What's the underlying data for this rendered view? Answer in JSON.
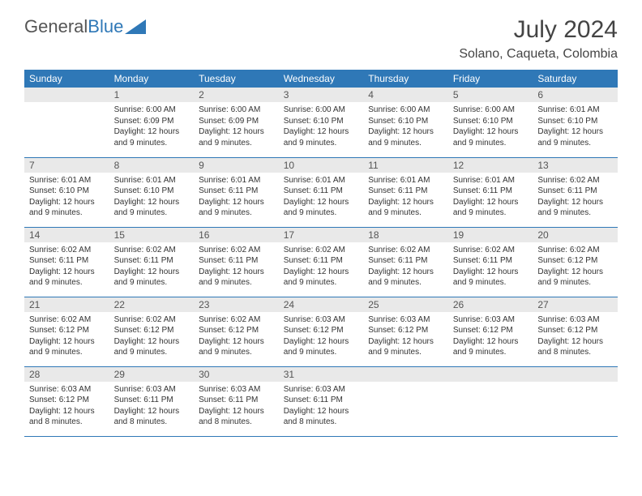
{
  "brand": {
    "part1": "General",
    "part2": "Blue"
  },
  "title": "July 2024",
  "location": "Solano, Caqueta, Colombia",
  "colors": {
    "header_bg": "#2f78b7",
    "header_text": "#ffffff",
    "daynum_bg": "#e9e9e9",
    "text": "#333333",
    "rule": "#2f78b7"
  },
  "fonts": {
    "title_pt": 30,
    "location_pt": 16,
    "day_header_pt": 12,
    "daynum_pt": 12,
    "body_pt": 10
  },
  "day_headers": [
    "Sunday",
    "Monday",
    "Tuesday",
    "Wednesday",
    "Thursday",
    "Friday",
    "Saturday"
  ],
  "weeks": [
    [
      {
        "n": "",
        "lines": []
      },
      {
        "n": "1",
        "lines": [
          "Sunrise: 6:00 AM",
          "Sunset: 6:09 PM",
          "Daylight: 12 hours",
          "and 9 minutes."
        ]
      },
      {
        "n": "2",
        "lines": [
          "Sunrise: 6:00 AM",
          "Sunset: 6:09 PM",
          "Daylight: 12 hours",
          "and 9 minutes."
        ]
      },
      {
        "n": "3",
        "lines": [
          "Sunrise: 6:00 AM",
          "Sunset: 6:10 PM",
          "Daylight: 12 hours",
          "and 9 minutes."
        ]
      },
      {
        "n": "4",
        "lines": [
          "Sunrise: 6:00 AM",
          "Sunset: 6:10 PM",
          "Daylight: 12 hours",
          "and 9 minutes."
        ]
      },
      {
        "n": "5",
        "lines": [
          "Sunrise: 6:00 AM",
          "Sunset: 6:10 PM",
          "Daylight: 12 hours",
          "and 9 minutes."
        ]
      },
      {
        "n": "6",
        "lines": [
          "Sunrise: 6:01 AM",
          "Sunset: 6:10 PM",
          "Daylight: 12 hours",
          "and 9 minutes."
        ]
      }
    ],
    [
      {
        "n": "7",
        "lines": [
          "Sunrise: 6:01 AM",
          "Sunset: 6:10 PM",
          "Daylight: 12 hours",
          "and 9 minutes."
        ]
      },
      {
        "n": "8",
        "lines": [
          "Sunrise: 6:01 AM",
          "Sunset: 6:10 PM",
          "Daylight: 12 hours",
          "and 9 minutes."
        ]
      },
      {
        "n": "9",
        "lines": [
          "Sunrise: 6:01 AM",
          "Sunset: 6:11 PM",
          "Daylight: 12 hours",
          "and 9 minutes."
        ]
      },
      {
        "n": "10",
        "lines": [
          "Sunrise: 6:01 AM",
          "Sunset: 6:11 PM",
          "Daylight: 12 hours",
          "and 9 minutes."
        ]
      },
      {
        "n": "11",
        "lines": [
          "Sunrise: 6:01 AM",
          "Sunset: 6:11 PM",
          "Daylight: 12 hours",
          "and 9 minutes."
        ]
      },
      {
        "n": "12",
        "lines": [
          "Sunrise: 6:01 AM",
          "Sunset: 6:11 PM",
          "Daylight: 12 hours",
          "and 9 minutes."
        ]
      },
      {
        "n": "13",
        "lines": [
          "Sunrise: 6:02 AM",
          "Sunset: 6:11 PM",
          "Daylight: 12 hours",
          "and 9 minutes."
        ]
      }
    ],
    [
      {
        "n": "14",
        "lines": [
          "Sunrise: 6:02 AM",
          "Sunset: 6:11 PM",
          "Daylight: 12 hours",
          "and 9 minutes."
        ]
      },
      {
        "n": "15",
        "lines": [
          "Sunrise: 6:02 AM",
          "Sunset: 6:11 PM",
          "Daylight: 12 hours",
          "and 9 minutes."
        ]
      },
      {
        "n": "16",
        "lines": [
          "Sunrise: 6:02 AM",
          "Sunset: 6:11 PM",
          "Daylight: 12 hours",
          "and 9 minutes."
        ]
      },
      {
        "n": "17",
        "lines": [
          "Sunrise: 6:02 AM",
          "Sunset: 6:11 PM",
          "Daylight: 12 hours",
          "and 9 minutes."
        ]
      },
      {
        "n": "18",
        "lines": [
          "Sunrise: 6:02 AM",
          "Sunset: 6:11 PM",
          "Daylight: 12 hours",
          "and 9 minutes."
        ]
      },
      {
        "n": "19",
        "lines": [
          "Sunrise: 6:02 AM",
          "Sunset: 6:11 PM",
          "Daylight: 12 hours",
          "and 9 minutes."
        ]
      },
      {
        "n": "20",
        "lines": [
          "Sunrise: 6:02 AM",
          "Sunset: 6:12 PM",
          "Daylight: 12 hours",
          "and 9 minutes."
        ]
      }
    ],
    [
      {
        "n": "21",
        "lines": [
          "Sunrise: 6:02 AM",
          "Sunset: 6:12 PM",
          "Daylight: 12 hours",
          "and 9 minutes."
        ]
      },
      {
        "n": "22",
        "lines": [
          "Sunrise: 6:02 AM",
          "Sunset: 6:12 PM",
          "Daylight: 12 hours",
          "and 9 minutes."
        ]
      },
      {
        "n": "23",
        "lines": [
          "Sunrise: 6:02 AM",
          "Sunset: 6:12 PM",
          "Daylight: 12 hours",
          "and 9 minutes."
        ]
      },
      {
        "n": "24",
        "lines": [
          "Sunrise: 6:03 AM",
          "Sunset: 6:12 PM",
          "Daylight: 12 hours",
          "and 9 minutes."
        ]
      },
      {
        "n": "25",
        "lines": [
          "Sunrise: 6:03 AM",
          "Sunset: 6:12 PM",
          "Daylight: 12 hours",
          "and 9 minutes."
        ]
      },
      {
        "n": "26",
        "lines": [
          "Sunrise: 6:03 AM",
          "Sunset: 6:12 PM",
          "Daylight: 12 hours",
          "and 9 minutes."
        ]
      },
      {
        "n": "27",
        "lines": [
          "Sunrise: 6:03 AM",
          "Sunset: 6:12 PM",
          "Daylight: 12 hours",
          "and 8 minutes."
        ]
      }
    ],
    [
      {
        "n": "28",
        "lines": [
          "Sunrise: 6:03 AM",
          "Sunset: 6:12 PM",
          "Daylight: 12 hours",
          "and 8 minutes."
        ]
      },
      {
        "n": "29",
        "lines": [
          "Sunrise: 6:03 AM",
          "Sunset: 6:11 PM",
          "Daylight: 12 hours",
          "and 8 minutes."
        ]
      },
      {
        "n": "30",
        "lines": [
          "Sunrise: 6:03 AM",
          "Sunset: 6:11 PM",
          "Daylight: 12 hours",
          "and 8 minutes."
        ]
      },
      {
        "n": "31",
        "lines": [
          "Sunrise: 6:03 AM",
          "Sunset: 6:11 PM",
          "Daylight: 12 hours",
          "and 8 minutes."
        ]
      },
      {
        "n": "",
        "lines": []
      },
      {
        "n": "",
        "lines": []
      },
      {
        "n": "",
        "lines": []
      }
    ]
  ]
}
